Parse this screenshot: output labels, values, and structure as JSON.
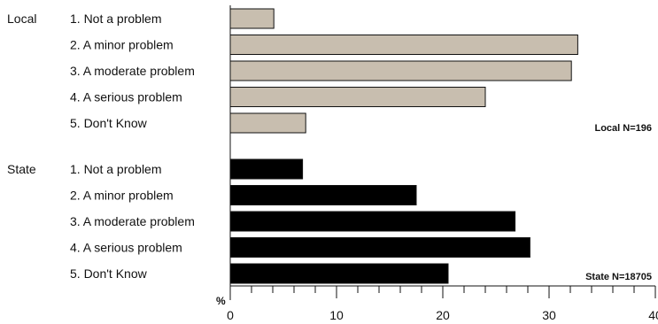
{
  "chart_data": {
    "type": "bar",
    "orientation": "horizontal",
    "grid": false,
    "xlim": [
      0,
      40
    ],
    "xticks": [
      0,
      10,
      20,
      30,
      40
    ],
    "xunit_label": "%",
    "groups": [
      {
        "name": "Local",
        "color": "#c8beaf",
        "n_label": "Local N=196",
        "categories": [
          "1. Not a problem",
          "2. A minor problem",
          "3. A moderate problem",
          "4. A serious problem",
          "5. Don't Know"
        ],
        "values": [
          4.1,
          32.7,
          32.1,
          24.0,
          7.1
        ]
      },
      {
        "name": "State",
        "color": "#000000",
        "n_label": "State N=18705",
        "categories": [
          "1. Not a problem",
          "2. A minor problem",
          "3. A moderate problem",
          "4. A serious problem",
          "5. Don't Know"
        ],
        "values": [
          6.8,
          17.5,
          26.8,
          28.2,
          20.5
        ]
      }
    ]
  }
}
